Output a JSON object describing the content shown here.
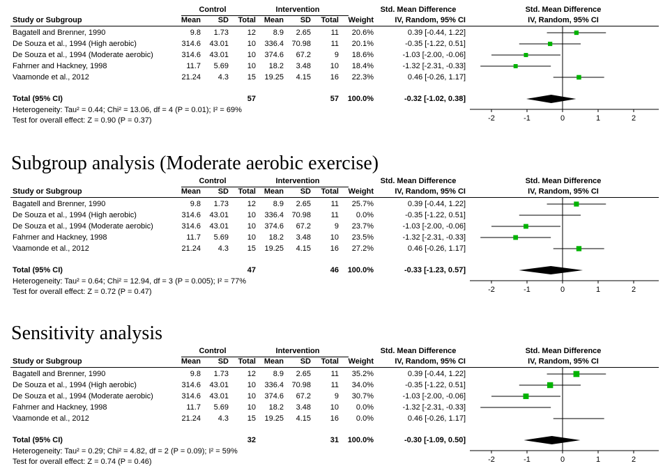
{
  "headers": {
    "control": "Control",
    "intervention": "Intervention",
    "smd_top": "Std. Mean Difference",
    "smd_bottom": "IV, Random, 95% CI",
    "study": "Study or Subgroup",
    "mean": "Mean",
    "sd": "SD",
    "total": "Total",
    "weight": "Weight"
  },
  "colors": {
    "square": "#00b300",
    "diamond": "#000000",
    "line": "#000000"
  },
  "panels": [
    {
      "title": "",
      "total_label": "Total (95% CI)",
      "total_control": "57",
      "total_intervention": "57",
      "total_weight": "100.0%",
      "total_ci": "-0.32 [-1.02, 0.38]",
      "heterogeneity": "Heterogeneity: Tau² = 0.44; Chi² = 13.06, df = 4 (P = 0.01); I² = 69%",
      "overall": "Test for overall effect: Z = 0.90 (P = 0.37)"
    },
    {
      "title": "Subgroup analysis (Moderate aerobic exercise)",
      "total_label": "Total (95% CI)",
      "total_control": "47",
      "total_intervention": "46",
      "total_weight": "100.0%",
      "total_ci": "-0.33 [-1.23, 0.57]",
      "heterogeneity": "Heterogeneity: Tau² = 0.64; Chi² = 12.94, df = 3 (P = 0.005); I² = 77%",
      "overall": "Test for overall effect: Z = 0.72 (P = 0.47)"
    },
    {
      "title": "Sensitivity analysis",
      "total_label": "Total (95% CI)",
      "total_control": "32",
      "total_intervention": "31",
      "total_weight": "100.0%",
      "total_ci": "-0.30 [-1.09, 0.50]",
      "heterogeneity": "Heterogeneity: Tau² = 0.29; Chi² = 4.82, df = 2 (P = 0.09); I² = 59%",
      "overall": "Test for overall effect: Z = 0.74 (P = 0.46)"
    }
  ],
  "chart_data": [
    {
      "type": "forest",
      "xlim": [
        -2.5,
        2.5
      ],
      "xticks": [
        -2,
        -1,
        0,
        1,
        2
      ],
      "tick_labels": [
        "-2",
        "-1",
        "0",
        "1",
        "2"
      ],
      "studies": [
        {
          "name": "Bagatell and Brenner, 1990",
          "c_mean": "9.8",
          "c_sd": "1.73",
          "c_total": "12",
          "i_mean": "8.9",
          "i_sd": "2.65",
          "i_total": "11",
          "weight": "20.6%",
          "ci_text": "0.39 [-0.44, 1.22]",
          "est": 0.39,
          "lo": -0.44,
          "hi": 1.22,
          "w": 20.6
        },
        {
          "name": "De Souza et al., 1994 (High aerobic)",
          "c_mean": "314.6",
          "c_sd": "43.01",
          "c_total": "10",
          "i_mean": "336.4",
          "i_sd": "70.98",
          "i_total": "11",
          "weight": "20.1%",
          "ci_text": "-0.35 [-1.22, 0.51]",
          "est": -0.35,
          "lo": -1.22,
          "hi": 0.51,
          "w": 20.1
        },
        {
          "name": "De Souza et al., 1994 (Moderate aerobic)",
          "c_mean": "314.6",
          "c_sd": "43.01",
          "c_total": "10",
          "i_mean": "374.6",
          "i_sd": "67.2",
          "i_total": "9",
          "weight": "18.6%",
          "ci_text": "-1.03 [-2.00, -0.06]",
          "est": -1.03,
          "lo": -2.0,
          "hi": -0.06,
          "w": 18.6
        },
        {
          "name": "Fahrner and Hackney, 1998",
          "c_mean": "11.7",
          "c_sd": "5.69",
          "c_total": "10",
          "i_mean": "18.2",
          "i_sd": "3.48",
          "i_total": "10",
          "weight": "18.4%",
          "ci_text": "-1.32 [-2.31, -0.33]",
          "est": -1.32,
          "lo": -2.31,
          "hi": -0.33,
          "w": 18.4
        },
        {
          "name": "Vaamonde et al., 2012",
          "c_mean": "21.24",
          "c_sd": "4.3",
          "c_total": "15",
          "i_mean": "19.25",
          "i_sd": "4.15",
          "i_total": "16",
          "weight": "22.3%",
          "ci_text": "0.46 [-0.26, 1.17]",
          "est": 0.46,
          "lo": -0.26,
          "hi": 1.17,
          "w": 22.3
        }
      ],
      "pooled": {
        "est": -0.32,
        "lo": -1.02,
        "hi": 0.38
      }
    },
    {
      "type": "forest",
      "xlim": [
        -2.5,
        2.5
      ],
      "xticks": [
        -2,
        -1,
        0,
        1,
        2
      ],
      "tick_labels": [
        "-2",
        "-1",
        "0",
        "1",
        "2"
      ],
      "studies": [
        {
          "name": "Bagatell and Brenner, 1990",
          "c_mean": "9.8",
          "c_sd": "1.73",
          "c_total": "12",
          "i_mean": "8.9",
          "i_sd": "2.65",
          "i_total": "11",
          "weight": "25.7%",
          "ci_text": "0.39 [-0.44, 1.22]",
          "est": 0.39,
          "lo": -0.44,
          "hi": 1.22,
          "w": 25.7
        },
        {
          "name": "De Souza et al., 1994 (High aerobic)",
          "c_mean": "314.6",
          "c_sd": "43.01",
          "c_total": "10",
          "i_mean": "336.4",
          "i_sd": "70.98",
          "i_total": "11",
          "weight": "0.0%",
          "ci_text": "-0.35 [-1.22, 0.51]",
          "est": -0.35,
          "lo": -1.22,
          "hi": 0.51,
          "w": 0
        },
        {
          "name": "De Souza et al., 1994 (Moderate aerobic)",
          "c_mean": "314.6",
          "c_sd": "43.01",
          "c_total": "10",
          "i_mean": "374.6",
          "i_sd": "67.2",
          "i_total": "9",
          "weight": "23.7%",
          "ci_text": "-1.03 [-2.00, -0.06]",
          "est": -1.03,
          "lo": -2.0,
          "hi": -0.06,
          "w": 23.7
        },
        {
          "name": "Fahrner and Hackney, 1998",
          "c_mean": "11.7",
          "c_sd": "5.69",
          "c_total": "10",
          "i_mean": "18.2",
          "i_sd": "3.48",
          "i_total": "10",
          "weight": "23.5%",
          "ci_text": "-1.32 [-2.31, -0.33]",
          "est": -1.32,
          "lo": -2.31,
          "hi": -0.33,
          "w": 23.5
        },
        {
          "name": "Vaamonde et al., 2012",
          "c_mean": "21.24",
          "c_sd": "4.3",
          "c_total": "15",
          "i_mean": "19.25",
          "i_sd": "4.15",
          "i_total": "16",
          "weight": "27.2%",
          "ci_text": "0.46 [-0.26, 1.17]",
          "est": 0.46,
          "lo": -0.26,
          "hi": 1.17,
          "w": 27.2
        }
      ],
      "pooled": {
        "est": -0.33,
        "lo": -1.23,
        "hi": 0.57
      }
    },
    {
      "type": "forest",
      "xlim": [
        -2.5,
        2.5
      ],
      "xticks": [
        -2,
        -1,
        0,
        1,
        2
      ],
      "tick_labels": [
        "-2",
        "-1",
        "0",
        "1",
        "2"
      ],
      "studies": [
        {
          "name": "Bagatell and Brenner, 1990",
          "c_mean": "9.8",
          "c_sd": "1.73",
          "c_total": "12",
          "i_mean": "8.9",
          "i_sd": "2.65",
          "i_total": "11",
          "weight": "35.2%",
          "ci_text": "0.39 [-0.44, 1.22]",
          "est": 0.39,
          "lo": -0.44,
          "hi": 1.22,
          "w": 35.2
        },
        {
          "name": "De Souza et al., 1994 (High aerobic)",
          "c_mean": "314.6",
          "c_sd": "43.01",
          "c_total": "10",
          "i_mean": "336.4",
          "i_sd": "70.98",
          "i_total": "11",
          "weight": "34.0%",
          "ci_text": "-0.35 [-1.22, 0.51]",
          "est": -0.35,
          "lo": -1.22,
          "hi": 0.51,
          "w": 34.0
        },
        {
          "name": "De Souza et al., 1994 (Moderate aerobic)",
          "c_mean": "314.6",
          "c_sd": "43.01",
          "c_total": "10",
          "i_mean": "374.6",
          "i_sd": "67.2",
          "i_total": "9",
          "weight": "30.7%",
          "ci_text": "-1.03 [-2.00, -0.06]",
          "est": -1.03,
          "lo": -2.0,
          "hi": -0.06,
          "w": 30.7
        },
        {
          "name": "Fahrner and Hackney, 1998",
          "c_mean": "11.7",
          "c_sd": "5.69",
          "c_total": "10",
          "i_mean": "18.2",
          "i_sd": "3.48",
          "i_total": "10",
          "weight": "0.0%",
          "ci_text": "-1.32 [-2.31, -0.33]",
          "est": -1.32,
          "lo": -2.31,
          "hi": -0.33,
          "w": 0
        },
        {
          "name": "Vaamonde et al., 2012",
          "c_mean": "21.24",
          "c_sd": "4.3",
          "c_total": "15",
          "i_mean": "19.25",
          "i_sd": "4.15",
          "i_total": "16",
          "weight": "0.0%",
          "ci_text": "0.46 [-0.26, 1.17]",
          "est": 0.46,
          "lo": -0.26,
          "hi": 1.17,
          "w": 0
        }
      ],
      "pooled": {
        "est": -0.3,
        "lo": -1.09,
        "hi": 0.5
      }
    }
  ]
}
